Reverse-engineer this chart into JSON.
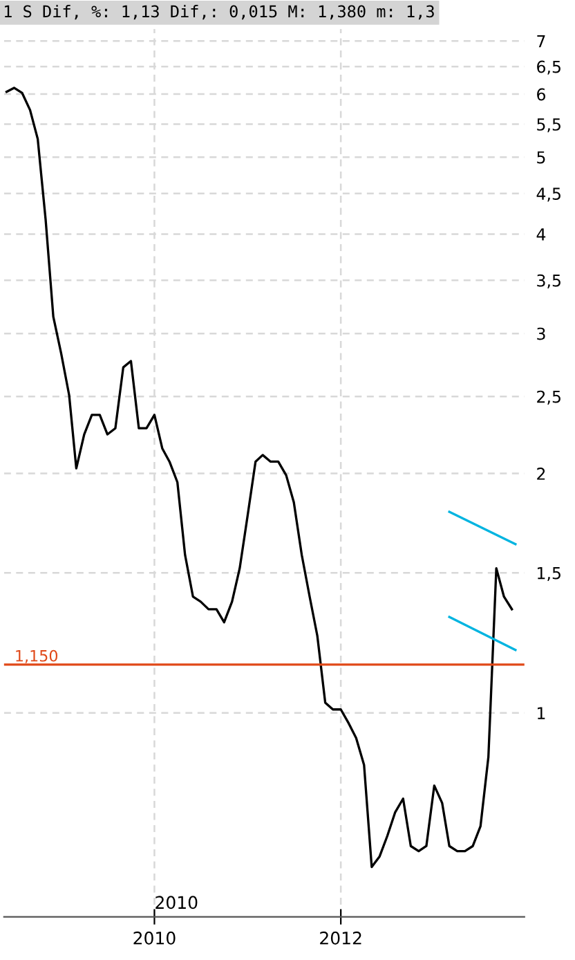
{
  "chart_data": {
    "type": "line",
    "title": "1 S Dif, %: 1,13 Dif,: 0,015 M: 1,380 m: 1,3",
    "x": [
      "2008-06",
      "2008-07",
      "2008-08",
      "2008-09",
      "2008-10",
      "2008-11",
      "2008-12",
      "2009-01",
      "2009-02",
      "2009-03",
      "2009-04",
      "2009-05",
      "2009-06",
      "2009-07",
      "2009-08",
      "2009-09",
      "2009-10",
      "2009-11",
      "2009-12",
      "2010-01",
      "2010-02",
      "2010-03",
      "2010-04",
      "2010-05",
      "2010-06",
      "2010-07",
      "2010-08",
      "2010-09",
      "2010-10",
      "2010-11",
      "2010-12",
      "2011-01",
      "2011-02",
      "2011-03",
      "2011-04",
      "2011-05",
      "2011-06",
      "2011-07",
      "2011-08",
      "2011-09",
      "2011-10",
      "2011-11",
      "2011-12",
      "2012-01",
      "2012-02",
      "2012-03",
      "2012-04",
      "2012-05",
      "2012-06",
      "2012-07",
      "2012-08",
      "2012-09",
      "2012-10",
      "2012-11",
      "2012-12",
      "2013-01",
      "2013-02",
      "2013-03",
      "2013-04",
      "2013-05",
      "2013-06",
      "2013-07",
      "2013-08",
      "2013-09",
      "2013-10",
      "2013-11"
    ],
    "series": [
      {
        "color": "#000000",
        "values": [
          6.04,
          6.11,
          6.02,
          5.73,
          5.27,
          4.17,
          3.15,
          2.83,
          2.51,
          2.03,
          2.24,
          2.37,
          2.37,
          2.24,
          2.28,
          2.72,
          2.77,
          2.28,
          2.28,
          2.37,
          2.15,
          2.07,
          1.95,
          1.58,
          1.4,
          1.38,
          1.35,
          1.35,
          1.3,
          1.38,
          1.52,
          1.77,
          2.07,
          2.11,
          2.07,
          2.07,
          1.99,
          1.84,
          1.58,
          1.4,
          1.25,
          1.03,
          1.01,
          1.01,
          0.97,
          0.93,
          0.86,
          0.64,
          0.66,
          0.7,
          0.75,
          0.78,
          0.68,
          0.67,
          0.68,
          0.81,
          0.77,
          0.68,
          0.67,
          0.67,
          0.68,
          0.72,
          0.88,
          1.52,
          1.4,
          1.35
        ]
      },
      {
        "color": "#00b4e0",
        "x": [
          "2013-03-01",
          "2013-11-15"
        ],
        "values": [
          1.79,
          1.63
        ]
      },
      {
        "color": "#00b4e0",
        "x": [
          "2013-03-01",
          "2013-11-15"
        ],
        "values": [
          1.32,
          1.2
        ]
      }
    ],
    "log": true,
    "xlim": [
      "2008-05-22",
      "2013-12-20"
    ],
    "xticks": [
      {
        "value": "2010-01-01",
        "label": "2010"
      },
      {
        "value": "2012-01-01",
        "label": "2012"
      }
    ],
    "ylim": [
      0.554,
      7.25
    ],
    "yticks": [
      1,
      {
        "value": 1.5,
        "label": "1,5"
      },
      2,
      {
        "value": 2.5,
        "label": "2,5"
      },
      3,
      {
        "value": 3.5,
        "label": "3,5"
      },
      4,
      {
        "value": 4.5,
        "label": "4,5"
      },
      5,
      {
        "value": 5.5,
        "label": "5,5"
      },
      6,
      {
        "value": 6.5,
        "label": "6,5"
      },
      7
    ],
    "ref_lines": [
      {
        "axis": "y",
        "value": 1.15,
        "label": "1,150",
        "color": "#e04818"
      }
    ],
    "annotations": [
      "2010"
    ],
    "grid": true,
    "line_style": "solid",
    "marker": "none"
  }
}
